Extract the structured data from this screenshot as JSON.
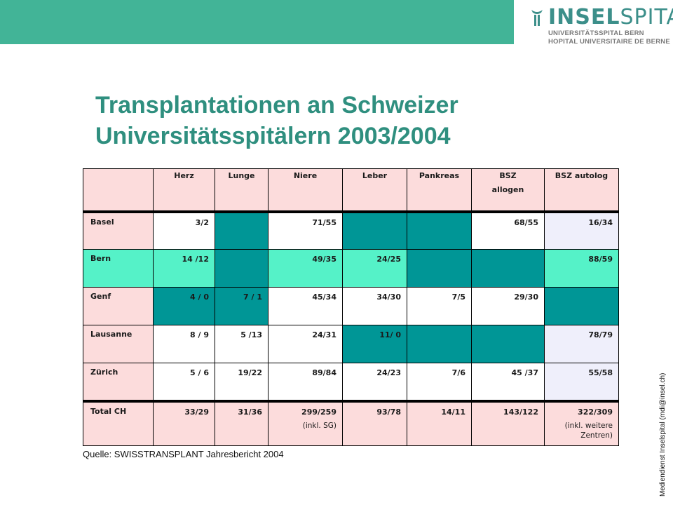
{
  "logo": {
    "brand_bold": "INSEL",
    "brand_light": "SPITAL",
    "sub1": "UNIVERSITÄTSSPITAL BERN",
    "sub2": "HOPITAL UNIVERSITAIRE DE BERNE",
    "icon": "insel-logo-mark-icon"
  },
  "title": {
    "line1": "Transplantationen an Schweizer",
    "line2": "Universitätsspitälern 2003/2004"
  },
  "colors": {
    "band": "#42b497",
    "title": "#2f8f7f",
    "pink": "#fcdcdc",
    "mint": "#55f2c8",
    "teal": "#009696",
    "lavender": "#efeffb"
  },
  "table": {
    "headers": [
      "",
      "Herz",
      "Lunge",
      "Niere",
      "Leber",
      "Pankreas",
      "BSZ",
      "BSZ autolog"
    ],
    "header_bsz_sub": "allogen",
    "rows": [
      {
        "label": "Basel",
        "cells": [
          "3/2",
          "",
          "71/55",
          "",
          "",
          "68/55",
          "16/34"
        ]
      },
      {
        "label": "Bern",
        "cells": [
          "14 /12",
          "",
          "49/35",
          "24/25",
          "",
          "",
          "88/59"
        ]
      },
      {
        "label": "Genf",
        "cells": [
          "4 / 0",
          "7 / 1",
          "45/34",
          "34/30",
          "7/5",
          "29/30",
          ""
        ]
      },
      {
        "label": "Lausanne",
        "cells": [
          "8 / 9",
          "5 /13",
          "24/31",
          "11/ 0",
          "",
          "",
          "78/79"
        ]
      },
      {
        "label": "Zürich",
        "cells": [
          "5 / 6",
          "19/22",
          "89/84",
          "24/23",
          "7/6",
          "45 /37",
          "55/58"
        ]
      },
      {
        "label": "Total CH",
        "cells": [
          "33/29",
          "31/36",
          "299/259",
          "93/78",
          "14/11",
          "143/122",
          "322/309"
        ]
      }
    ],
    "note_niere": "(inkl. SG)",
    "note_autolog_1": "(inkl. weitere",
    "note_autolog_2": "Zentren)"
  },
  "source": "Quelle: SWISSTRANSPLANT Jahresbericht 2004",
  "side_note": "Mediendienst Inselspital (mdi@insel.ch)"
}
